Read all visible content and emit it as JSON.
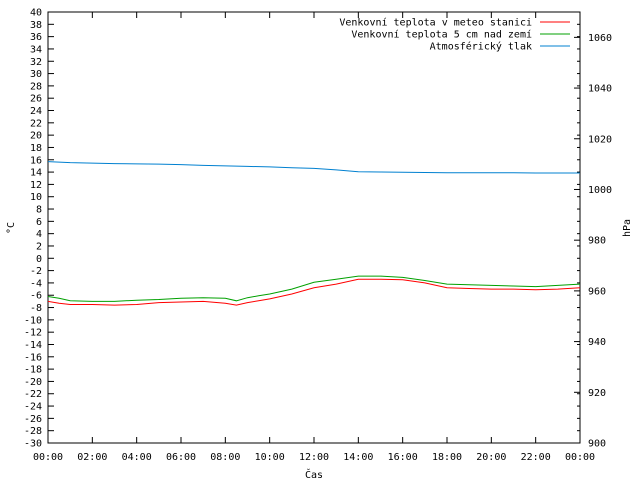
{
  "chart_data": {
    "type": "line",
    "title": "",
    "xlabel": "Čas",
    "ylabel": "°C",
    "y2label": "hPa",
    "grid": false,
    "legend_position": "top-right",
    "x_ticks": [
      "00:00",
      "02:00",
      "04:00",
      "06:00",
      "08:00",
      "10:00",
      "12:00",
      "14:00",
      "16:00",
      "18:00",
      "20:00",
      "22:00",
      "00:00"
    ],
    "xlim": [
      0,
      24
    ],
    "ylim": [
      -30,
      40
    ],
    "y_tick_step": 2,
    "y2lim": [
      900,
      1070
    ],
    "y2_ticks": [
      900,
      920,
      940,
      960,
      980,
      1000,
      1020,
      1040,
      1060
    ],
    "series": [
      {
        "name": "Venkovní teplota v meteo stanici",
        "axis": "left",
        "color": "#ff0000",
        "x": [
          0,
          0.5,
          1,
          2,
          3,
          4,
          5,
          6,
          7,
          8,
          8.5,
          9,
          9.5,
          10,
          11,
          12,
          13,
          14,
          15,
          16,
          17,
          18,
          19,
          20,
          21,
          22,
          23,
          24
        ],
        "values": [
          -7.0,
          -7.3,
          -7.5,
          -7.5,
          -7.6,
          -7.5,
          -7.2,
          -7.1,
          -7.0,
          -7.3,
          -7.6,
          -7.2,
          -6.9,
          -6.6,
          -5.8,
          -4.8,
          -4.2,
          -3.4,
          -3.4,
          -3.5,
          -4.0,
          -4.8,
          -4.9,
          -5.0,
          -5.0,
          -5.1,
          -5.0,
          -4.8
        ]
      },
      {
        "name": "Venkovní teplota 5 cm nad zemí",
        "axis": "left",
        "color": "#00a000",
        "x": [
          0,
          0.5,
          1,
          2,
          3,
          4,
          5,
          6,
          7,
          8,
          8.5,
          9,
          9.5,
          10,
          11,
          12,
          13,
          14,
          15,
          16,
          17,
          18,
          19,
          20,
          21,
          22,
          23,
          24
        ],
        "values": [
          -6.2,
          -6.5,
          -6.9,
          -7.0,
          -7.0,
          -6.8,
          -6.7,
          -6.5,
          -6.4,
          -6.5,
          -6.9,
          -6.4,
          -6.1,
          -5.8,
          -5.0,
          -3.9,
          -3.4,
          -2.9,
          -2.9,
          -3.1,
          -3.6,
          -4.2,
          -4.3,
          -4.4,
          -4.5,
          -4.6,
          -4.4,
          -4.2
        ]
      },
      {
        "name": "Atmosférický tlak",
        "axis": "right",
        "color": "#0080d0",
        "x": [
          0,
          1,
          2,
          3,
          4,
          5,
          6,
          7,
          8,
          9,
          10,
          11,
          12,
          13,
          14,
          15,
          16,
          17,
          18,
          19,
          20,
          21,
          22,
          23,
          24
        ],
        "values": [
          1011.0,
          1010.6,
          1010.4,
          1010.2,
          1010.1,
          1010.0,
          1009.8,
          1009.5,
          1009.3,
          1009.1,
          1008.9,
          1008.6,
          1008.3,
          1007.7,
          1007.0,
          1006.9,
          1006.8,
          1006.7,
          1006.6,
          1006.6,
          1006.6,
          1006.6,
          1006.5,
          1006.5,
          1006.5
        ]
      }
    ]
  }
}
